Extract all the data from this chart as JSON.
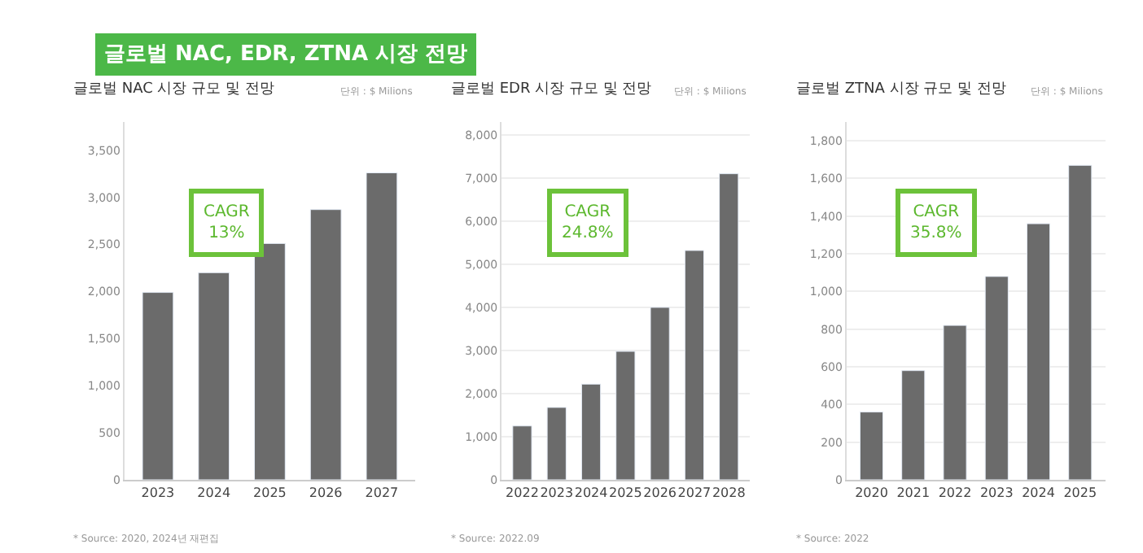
{
  "chart_data": [
    {
      "type": "other",
      "title": "글로벌 NAC, EDR, ZTNA 시장 전망"
    },
    {
      "type": "bar",
      "title": "글로벌 NAC 시장 규모 및 전망",
      "categories": [
        "2023",
        "2024",
        "2025",
        "2026",
        "2027"
      ],
      "values": [
        1990,
        2200,
        2510,
        2870,
        3260
      ],
      "color": "#6b6b6b",
      "ylim": [
        0,
        3800
      ],
      "yticks": [
        {
          "value": 0,
          "label": "0"
        },
        {
          "value": 500,
          "label": "500"
        },
        {
          "value": 1000,
          "label": "1,000"
        },
        {
          "value": 1500,
          "label": "1,500"
        },
        {
          "value": 2000,
          "label": "2,000"
        },
        {
          "value": 2500,
          "label": "2,500"
        },
        {
          "value": 3000,
          "label": "3,000"
        },
        {
          "value": 3500,
          "label": "3,500"
        }
      ],
      "grid": false,
      "annotations": [
        "단위 : $ Milions",
        "CAGR\n13%",
        "* Source: 2020, 2024년 재편집"
      ]
    },
    {
      "type": "bar",
      "title": "글로벌 EDR 시장 규모 및 전망",
      "categories": [
        "2022",
        "2023",
        "2024",
        "2025",
        "2026",
        "2027",
        "2028"
      ],
      "values": [
        1250,
        1680,
        2220,
        2980,
        4000,
        5320,
        7100
      ],
      "color": "#6b6b6b",
      "ylim": [
        0,
        8300
      ],
      "yticks": [
        {
          "value": 0,
          "label": "0"
        },
        {
          "value": 1000,
          "label": "1,000"
        },
        {
          "value": 2000,
          "label": "2,000"
        },
        {
          "value": 3000,
          "label": "3,000"
        },
        {
          "value": 4000,
          "label": "4,000"
        },
        {
          "value": 5000,
          "label": "5,000"
        },
        {
          "value": 6000,
          "label": "6,000"
        },
        {
          "value": 7000,
          "label": "7,000"
        },
        {
          "value": 8000,
          "label": "8,000"
        }
      ],
      "grid": "y",
      "annotations": [
        "단위 : $ Milions",
        "CAGR\n24.8%",
        "* Source: 2022.09"
      ]
    },
    {
      "type": "bar",
      "title": "글로벌 ZTNA 시장 규모 및 전망",
      "categories": [
        "2020",
        "2021",
        "2022",
        "2023",
        "2024",
        "2025"
      ],
      "values": [
        360,
        580,
        820,
        1080,
        1360,
        1670
      ],
      "color": "#6b6b6b",
      "ylim": [
        0,
        1900
      ],
      "yticks": [
        {
          "value": 0,
          "label": "0"
        },
        {
          "value": 200,
          "label": "200"
        },
        {
          "value": 400,
          "label": "400"
        },
        {
          "value": 600,
          "label": "600"
        },
        {
          "value": 800,
          "label": "800"
        },
        {
          "value": 1000,
          "label": "1,000"
        },
        {
          "value": 1200,
          "label": "1,200"
        },
        {
          "value": 1400,
          "label": "1,400"
        },
        {
          "value": 1600,
          "label": "1,600"
        },
        {
          "value": 1800,
          "label": "1,800"
        }
      ],
      "grid": "y",
      "annotations": [
        "단위 : $ Milions",
        "CAGR\n35.8%",
        "* Source: 2022"
      ]
    }
  ]
}
